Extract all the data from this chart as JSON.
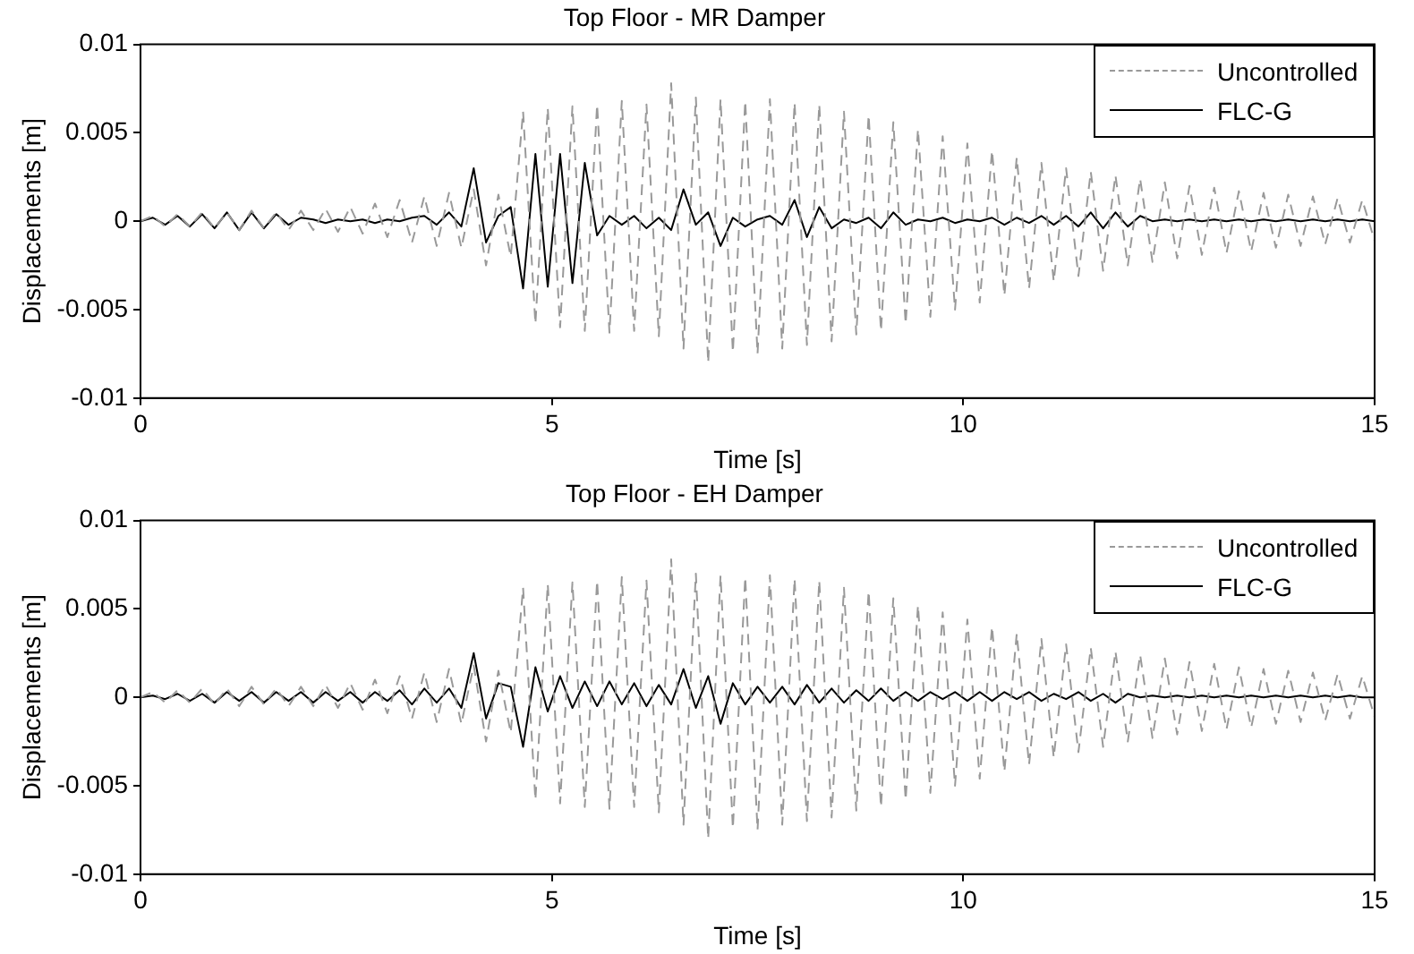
{
  "chart_data": [
    {
      "type": "line",
      "title": "Top Floor - MR Damper",
      "xlabel": "Time [s]",
      "ylabel": "Displacements [m]",
      "x": [
        0,
        0.15,
        0.3,
        0.45,
        0.6,
        0.75,
        0.9,
        1.05,
        1.2,
        1.35,
        1.5,
        1.65,
        1.8,
        1.95,
        2.1,
        2.25,
        2.4,
        2.55,
        2.7,
        2.85,
        3,
        3.15,
        3.3,
        3.45,
        3.6,
        3.75,
        3.9,
        4.05,
        4.2,
        4.35,
        4.5,
        4.65,
        4.8,
        4.95,
        5.1,
        5.25,
        5.4,
        5.55,
        5.7,
        5.85,
        6,
        6.15,
        6.3,
        6.45,
        6.6,
        6.75,
        6.9,
        7.05,
        7.2,
        7.35,
        7.5,
        7.65,
        7.8,
        7.95,
        8.1,
        8.25,
        8.4,
        8.55,
        8.7,
        8.85,
        9,
        9.15,
        9.3,
        9.45,
        9.6,
        9.75,
        9.9,
        10.05,
        10.2,
        10.35,
        10.5,
        10.65,
        10.8,
        10.95,
        11.1,
        11.25,
        11.4,
        11.55,
        11.7,
        11.85,
        12,
        12.15,
        12.3,
        12.45,
        12.6,
        12.75,
        12.9,
        13.05,
        13.2,
        13.35,
        13.5,
        13.65,
        13.8,
        13.95,
        14.1,
        14.25,
        14.4,
        14.55,
        14.7,
        14.85,
        15
      ],
      "series": [
        {
          "name": "Uncontrolled",
          "color": "#999999",
          "line_style": "dashed",
          "values": [
            0,
            0.0003,
            -0.0003,
            0.0004,
            -0.0003,
            0.0005,
            -0.0004,
            0.0005,
            -0.0005,
            0.0006,
            -0.0004,
            0.0005,
            -0.0005,
            0.0006,
            -0.0005,
            0.0007,
            -0.0006,
            0.0008,
            -0.0007,
            0.001,
            -0.0009,
            0.0012,
            -0.0012,
            0.0014,
            -0.0014,
            0.0016,
            -0.0015,
            0.0018,
            -0.0025,
            0.0015,
            -0.002,
            0.0062,
            -0.0058,
            0.0064,
            -0.006,
            0.0065,
            -0.0062,
            0.0066,
            -0.0063,
            0.0068,
            -0.0062,
            0.0066,
            -0.0065,
            0.0078,
            -0.0072,
            0.007,
            -0.008,
            0.0069,
            -0.0074,
            0.0068,
            -0.0075,
            0.0069,
            -0.0072,
            0.0067,
            -0.007,
            0.0066,
            -0.0068,
            0.0062,
            -0.0064,
            0.006,
            -0.0062,
            0.0056,
            -0.0058,
            0.0052,
            -0.0054,
            0.0048,
            -0.005,
            0.0044,
            -0.0046,
            0.004,
            -0.0042,
            0.0036,
            -0.0038,
            0.0033,
            -0.0034,
            0.003,
            -0.0031,
            0.0028,
            -0.0028,
            0.0026,
            -0.0025,
            0.0024,
            -0.0023,
            0.0022,
            -0.0021,
            0.002,
            -0.0019,
            0.0019,
            -0.0018,
            0.0017,
            -0.0017,
            0.0016,
            -0.0015,
            0.0015,
            -0.0014,
            0.0014,
            -0.0013,
            0.0013,
            -0.0012,
            0.0012,
            -0.0011
          ]
        },
        {
          "name": "FLC-G",
          "color": "#000000",
          "line_style": "solid",
          "values": [
            0,
            0.0002,
            -0.0002,
            0.0003,
            -0.0003,
            0.0004,
            -0.0004,
            0.0005,
            -0.0005,
            0.0005,
            -0.0004,
            0.0004,
            -0.0002,
            0.0002,
            0.0001,
            -0.0001,
            0.0001,
            0,
            0.0001,
            -0.0001,
            0.0001,
            0,
            0.0002,
            0.0003,
            -0.0002,
            0.0005,
            -0.0003,
            0.003,
            -0.0012,
            0.0003,
            0.0008,
            -0.0038,
            0.0038,
            -0.0037,
            0.0038,
            -0.0035,
            0.0033,
            -0.0008,
            0.0003,
            -0.0002,
            0.0003,
            -0.0004,
            0.0002,
            -0.0005,
            0.0018,
            -0.0002,
            0.0005,
            -0.0014,
            0.0002,
            -0.0003,
            0.0001,
            0.0003,
            -0.0002,
            0.0012,
            -0.0009,
            0.0008,
            -0.0004,
            0.0001,
            -0.0001,
            0.0002,
            -0.0004,
            0.0005,
            -0.0002,
            0.0001,
            0,
            0.0002,
            -0.0001,
            0.0001,
            0,
            0.0002,
            -0.0002,
            0.0002,
            -0.0001,
            0.0003,
            -0.0002,
            0.0003,
            -0.0003,
            0.0005,
            -0.0004,
            0.0005,
            -0.0003,
            0.0003,
            0,
            0.0001,
            0,
            0.0001,
            0,
            0.0001,
            0,
            0.0001,
            0,
            0.0001,
            0,
            0.0001,
            0,
            0.0001,
            0,
            0.0001,
            0,
            0.0001,
            0
          ]
        }
      ],
      "xlim": [
        0,
        15
      ],
      "xticks": [
        0,
        5,
        10,
        15
      ],
      "ylim": [
        -0.01,
        0.01
      ],
      "yticks": [
        -0.01,
        -0.005,
        0,
        0.005,
        0.01
      ],
      "grid": false,
      "legend": "top right",
      "marker": "none"
    },
    {
      "type": "line",
      "title": "Top Floor - EH Damper",
      "xlabel": "Time [s]",
      "ylabel": "Displacements [m]",
      "x": [
        0,
        0.15,
        0.3,
        0.45,
        0.6,
        0.75,
        0.9,
        1.05,
        1.2,
        1.35,
        1.5,
        1.65,
        1.8,
        1.95,
        2.1,
        2.25,
        2.4,
        2.55,
        2.7,
        2.85,
        3,
        3.15,
        3.3,
        3.45,
        3.6,
        3.75,
        3.9,
        4.05,
        4.2,
        4.35,
        4.5,
        4.65,
        4.8,
        4.95,
        5.1,
        5.25,
        5.4,
        5.55,
        5.7,
        5.85,
        6,
        6.15,
        6.3,
        6.45,
        6.6,
        6.75,
        6.9,
        7.05,
        7.2,
        7.35,
        7.5,
        7.65,
        7.8,
        7.95,
        8.1,
        8.25,
        8.4,
        8.55,
        8.7,
        8.85,
        9,
        9.15,
        9.3,
        9.45,
        9.6,
        9.75,
        9.9,
        10.05,
        10.2,
        10.35,
        10.5,
        10.65,
        10.8,
        10.95,
        11.1,
        11.25,
        11.4,
        11.55,
        11.7,
        11.85,
        12,
        12.15,
        12.3,
        12.45,
        12.6,
        12.75,
        12.9,
        13.05,
        13.2,
        13.35,
        13.5,
        13.65,
        13.8,
        13.95,
        14.1,
        14.25,
        14.4,
        14.55,
        14.7,
        14.85,
        15
      ],
      "series": [
        {
          "name": "Uncontrolled",
          "color": "#999999",
          "line_style": "dashed",
          "values": [
            0,
            0.0003,
            -0.0003,
            0.0004,
            -0.0003,
            0.0005,
            -0.0004,
            0.0005,
            -0.0005,
            0.0006,
            -0.0004,
            0.0005,
            -0.0005,
            0.0006,
            -0.0005,
            0.0007,
            -0.0006,
            0.0008,
            -0.0007,
            0.001,
            -0.0009,
            0.0012,
            -0.0012,
            0.0014,
            -0.0014,
            0.0016,
            -0.0015,
            0.0018,
            -0.0025,
            0.0015,
            -0.002,
            0.0062,
            -0.0058,
            0.0064,
            -0.006,
            0.0065,
            -0.0062,
            0.0066,
            -0.0063,
            0.0068,
            -0.0062,
            0.0066,
            -0.0065,
            0.0078,
            -0.0072,
            0.007,
            -0.008,
            0.0069,
            -0.0074,
            0.0068,
            -0.0075,
            0.0069,
            -0.0072,
            0.0067,
            -0.007,
            0.0066,
            -0.0068,
            0.0062,
            -0.0064,
            0.006,
            -0.0062,
            0.0056,
            -0.0058,
            0.0052,
            -0.0054,
            0.0048,
            -0.005,
            0.0044,
            -0.0046,
            0.004,
            -0.0042,
            0.0036,
            -0.0038,
            0.0033,
            -0.0034,
            0.003,
            -0.0031,
            0.0028,
            -0.0028,
            0.0026,
            -0.0025,
            0.0024,
            -0.0023,
            0.0022,
            -0.0021,
            0.002,
            -0.0019,
            0.0019,
            -0.0018,
            0.0017,
            -0.0017,
            0.0016,
            -0.0015,
            0.0015,
            -0.0014,
            0.0014,
            -0.0013,
            0.0013,
            -0.0012,
            0.0012,
            -0.0011
          ]
        },
        {
          "name": "FLC-G",
          "color": "#000000",
          "line_style": "solid",
          "values": [
            0,
            0.0001,
            -0.0001,
            0.0002,
            -0.0002,
            0.0002,
            -0.0003,
            0.0003,
            -0.0002,
            0.0003,
            -0.0003,
            0.0003,
            -0.0002,
            0.0003,
            -0.0003,
            0.0003,
            -0.0002,
            0.0003,
            -0.0003,
            0.0003,
            -0.0002,
            0.0004,
            -0.0004,
            0.0005,
            -0.0003,
            0.0005,
            -0.0006,
            0.0025,
            -0.0012,
            0.0008,
            0.0006,
            -0.0028,
            0.0017,
            -0.0008,
            0.0012,
            -0.0006,
            0.0009,
            -0.0005,
            0.0009,
            -0.0004,
            0.0008,
            -0.0005,
            0.0007,
            -0.0004,
            0.0016,
            -0.0006,
            0.0012,
            -0.0015,
            0.0008,
            -0.0004,
            0.0006,
            -0.0003,
            0.0006,
            -0.0004,
            0.0007,
            -0.0003,
            0.0005,
            -0.0003,
            0.0004,
            -0.0002,
            0.0005,
            -0.0002,
            0.0003,
            -0.0002,
            0.0003,
            -0.0001,
            0.0003,
            -0.0002,
            0.0003,
            -0.0002,
            0.0003,
            -0.0001,
            0.0003,
            -0.0002,
            0.0002,
            -0.0001,
            0.0003,
            -0.0002,
            0.0002,
            -0.0003,
            0.0002,
            0,
            0.0001,
            0,
            0.0001,
            0,
            0.0001,
            0,
            0.0001,
            0,
            0.0001,
            0,
            0.0001,
            0,
            0.0001,
            0,
            0.0001,
            0,
            0.0001,
            0,
            0
          ]
        }
      ],
      "xlim": [
        0,
        15
      ],
      "xticks": [
        0,
        5,
        10,
        15
      ],
      "ylim": [
        -0.01,
        0.01
      ],
      "yticks": [
        -0.01,
        -0.005,
        0,
        0.005,
        0.01
      ],
      "grid": false,
      "legend": "top right",
      "marker": "none"
    }
  ]
}
